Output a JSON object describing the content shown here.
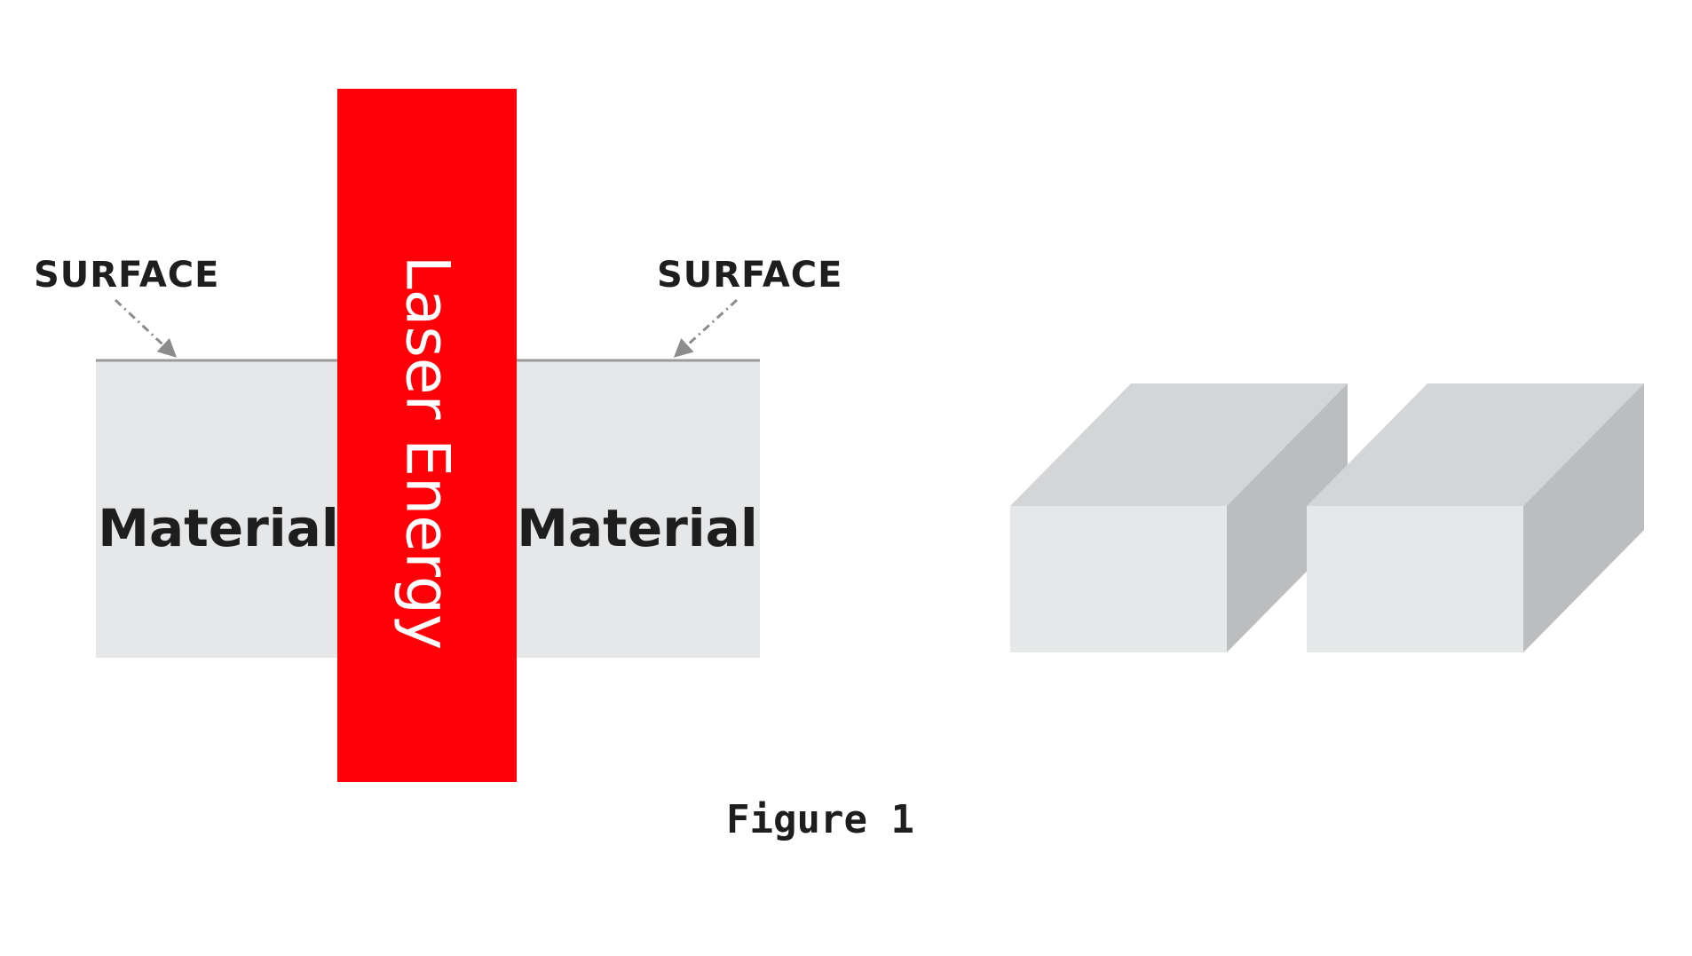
{
  "left_diagram": {
    "surface_label_left": "SURFACE",
    "surface_label_right": "SURFACE",
    "material_label_left": "Material",
    "material_label_right": "Material",
    "laser_label": "Laser Energy"
  },
  "caption": "Figure 1",
  "colors": {
    "background": "#ffffff",
    "material_fill": "#e6e7e8",
    "surface_line": "#9a9b9c",
    "laser": "#ff0008",
    "laser_text": "#ffffff",
    "text": "#1e1e1e",
    "arrow": "#8c8c8c",
    "block_front": "#e6e7e8",
    "block_top": "#d4d5d6",
    "block_side": "#bcbdbe"
  }
}
